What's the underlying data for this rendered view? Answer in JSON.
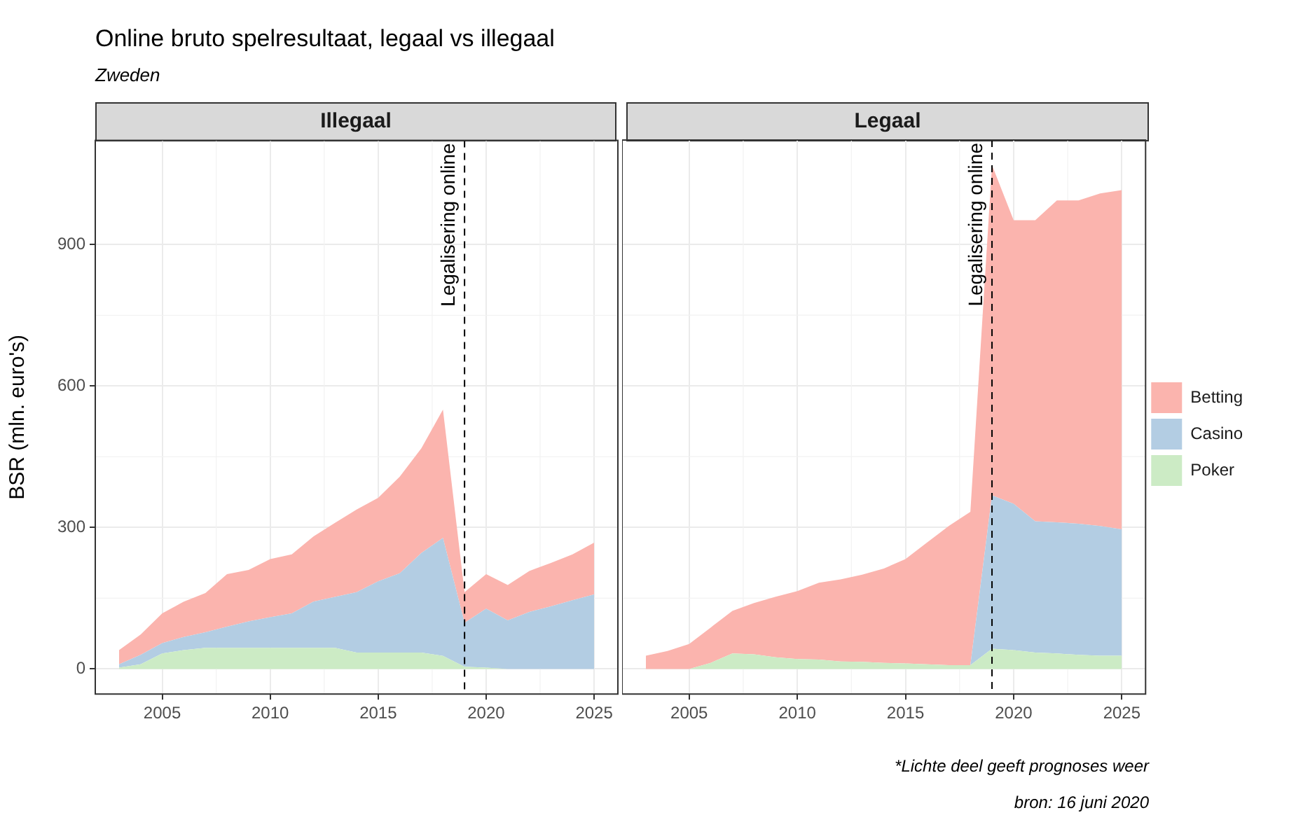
{
  "chart_data": [
    {
      "type": "other",
      "title": "Online bruto spelresultaat, legaal vs illegaal",
      "subtitle": "Zweden",
      "annotations": [
        "*Lichte deel geeft prognoses weer",
        "bron: 16 juni 2020"
      ]
    },
    {
      "type": "area",
      "title": "Illegaal",
      "ylabel": "BSR (mln. euro's)",
      "stacked": true,
      "grid": true,
      "x": [
        2003,
        2004,
        2005,
        2006,
        2007,
        2008,
        2009,
        2010,
        2011,
        2012,
        2013,
        2014,
        2015,
        2016,
        2017,
        2018,
        2019,
        2020,
        2021,
        2022,
        2023,
        2024,
        2025
      ],
      "xlim": [
        2001.9,
        2026.1
      ],
      "xticks": [
        2005,
        2010,
        2015,
        2020,
        2025
      ],
      "ylim": [
        -53,
        1121
      ],
      "yticks": [
        0,
        300,
        600,
        900
      ],
      "series": [
        {
          "color": "#ccebc5",
          "values": [
            3,
            10,
            33,
            40,
            45,
            45,
            45,
            45,
            45,
            45,
            45,
            35,
            35,
            35,
            35,
            28,
            5,
            3,
            0,
            0,
            0,
            0,
            0
          ]
        },
        {
          "color": "#b3cde3",
          "values": [
            7,
            20,
            22,
            28,
            33,
            45,
            56,
            65,
            73,
            98,
            108,
            128,
            151,
            168,
            211,
            250,
            93,
            125,
            103,
            121,
            133,
            146,
            158
          ]
        },
        {
          "color": "#fbb4ae",
          "values": [
            30,
            43,
            63,
            75,
            83,
            111,
            109,
            123,
            125,
            138,
            157,
            175,
            177,
            205,
            222,
            272,
            65,
            73,
            75,
            87,
            92,
            97,
            110
          ]
        }
      ],
      "ref_lines": [
        {
          "axis": "x",
          "value": 2019,
          "label": "Legalisering online",
          "line_style": "dashed"
        }
      ]
    },
    {
      "type": "area",
      "title": "Legaal",
      "stacked": true,
      "grid": true,
      "tick_labels": "x",
      "legend": "right",
      "x": [
        2003,
        2004,
        2005,
        2006,
        2007,
        2008,
        2009,
        2010,
        2011,
        2012,
        2013,
        2014,
        2015,
        2016,
        2017,
        2018,
        2019,
        2020,
        2021,
        2022,
        2023,
        2024,
        2025
      ],
      "xlim": [
        2001.9,
        2026.1
      ],
      "xticks": [
        2005,
        2010,
        2015,
        2020,
        2025
      ],
      "ylim": [
        -53,
        1121
      ],
      "yticks": [
        0,
        300,
        600,
        900
      ],
      "series": [
        {
          "name": "Poker",
          "color": "#ccebc5",
          "values": [
            0,
            0,
            0,
            13,
            33,
            31,
            25,
            21,
            20,
            16,
            15,
            13,
            12,
            10,
            8,
            8,
            43,
            40,
            35,
            33,
            30,
            28,
            28
          ]
        },
        {
          "name": "Casino",
          "color": "#b3cde3",
          "values": [
            0,
            0,
            0,
            0,
            0,
            0,
            0,
            0,
            0,
            0,
            0,
            0,
            0,
            0,
            0,
            0,
            325,
            310,
            278,
            278,
            278,
            275,
            268
          ]
        },
        {
          "name": "Betting",
          "color": "#fbb4ae",
          "values": [
            28,
            38,
            53,
            75,
            90,
            109,
            128,
            144,
            163,
            174,
            185,
            200,
            221,
            258,
            295,
            325,
            700,
            601,
            638,
            682,
            685,
            705,
            719
          ]
        }
      ],
      "ref_lines": [
        {
          "axis": "x",
          "value": 2019,
          "label": "Legalisering online",
          "line_style": "dashed"
        }
      ]
    }
  ]
}
